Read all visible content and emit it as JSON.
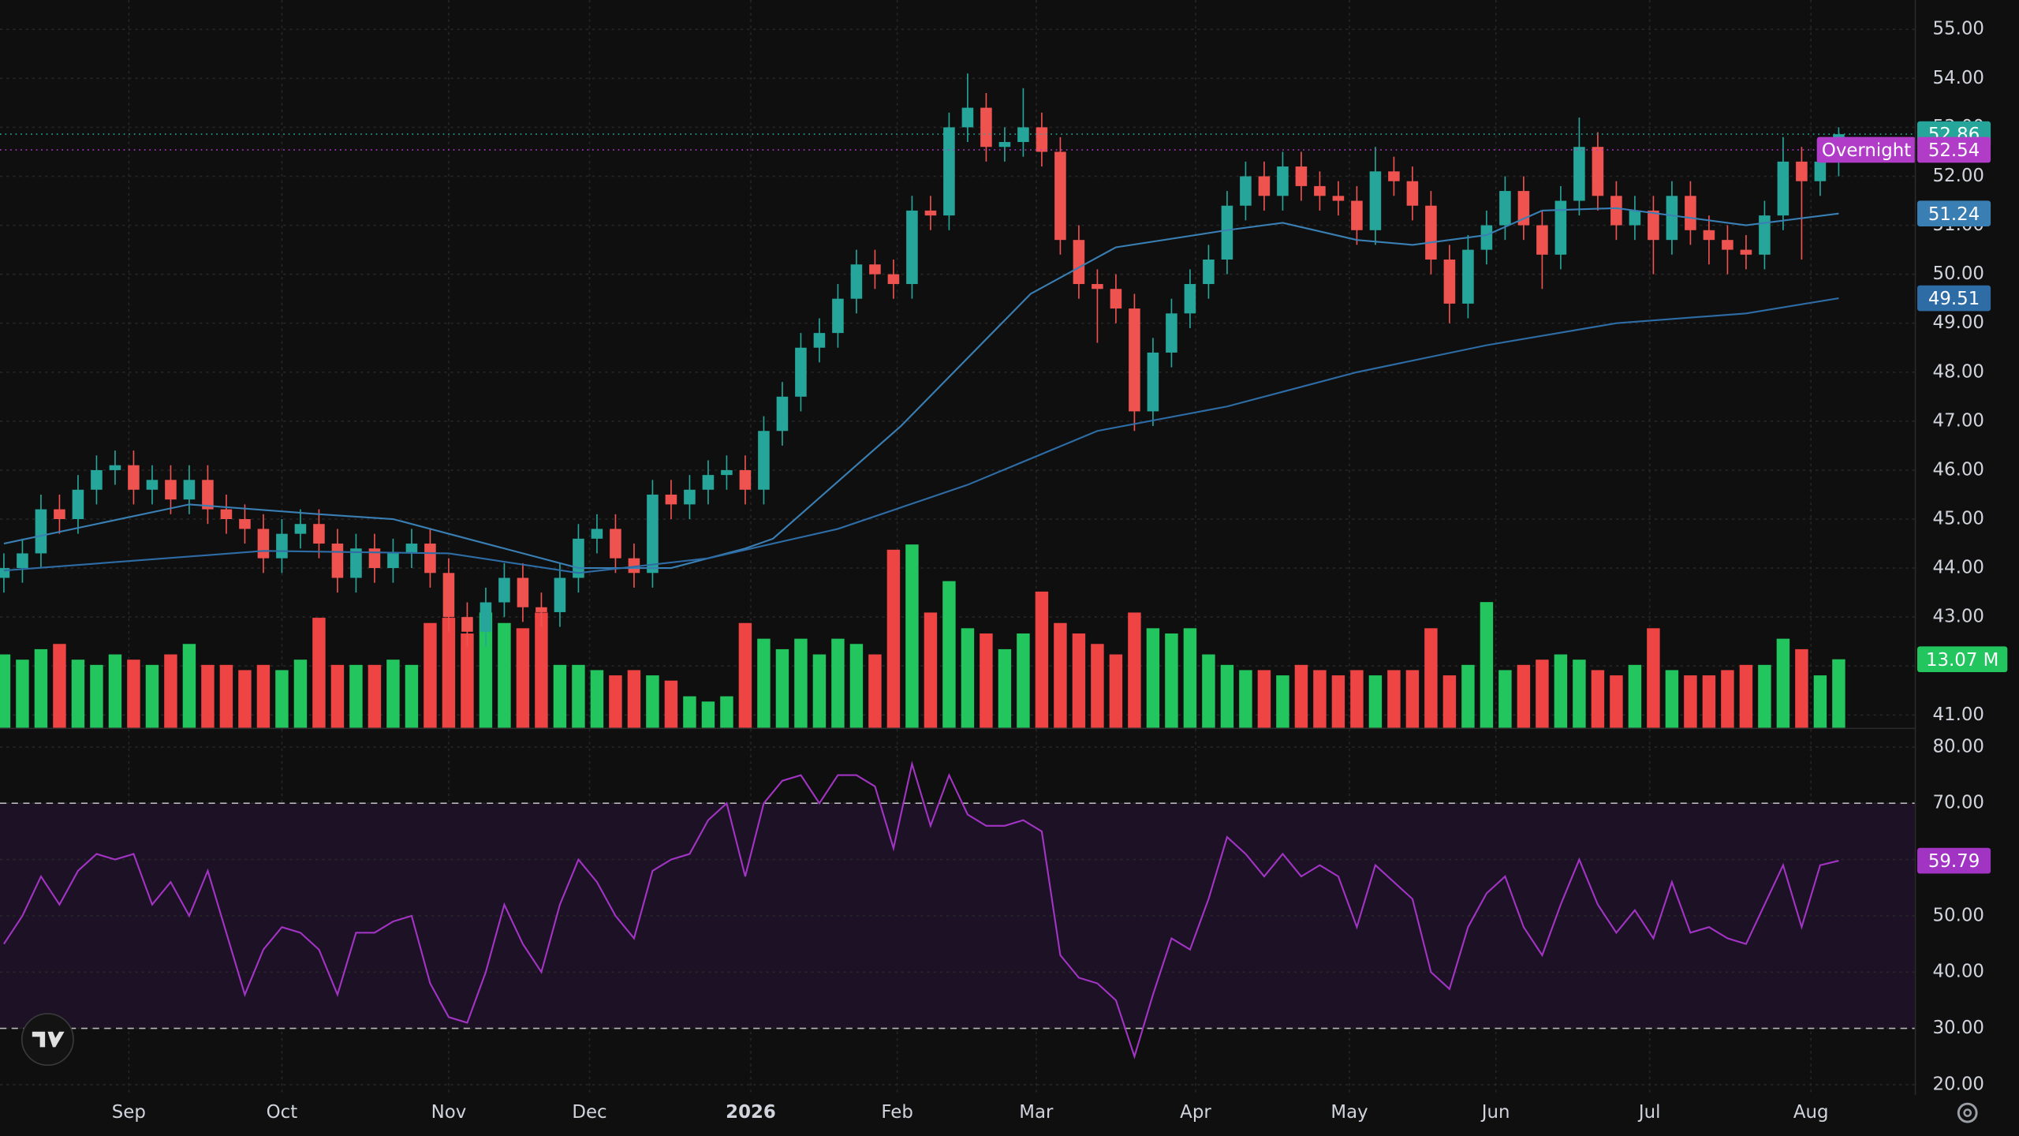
{
  "chart_data": [
    {
      "type": "candlestick",
      "x": [
        0,
        1,
        2,
        3,
        4,
        5,
        6,
        7,
        8,
        9,
        10,
        11,
        12,
        13,
        14,
        15,
        16,
        17,
        18,
        19,
        20,
        21,
        22,
        23,
        24,
        25,
        26,
        27,
        28,
        29,
        30,
        31,
        32,
        33,
        34,
        35,
        36,
        37,
        38,
        39,
        40,
        41,
        42,
        43,
        44,
        45,
        46,
        47,
        48,
        49,
        50,
        51,
        52,
        53,
        54,
        55,
        56,
        57,
        58,
        59,
        60,
        61,
        62,
        63,
        64,
        65,
        66,
        67,
        68,
        69,
        70,
        71,
        72,
        73,
        74,
        75,
        76,
        77,
        78,
        79,
        80,
        81,
        82,
        83,
        84,
        85,
        86,
        87,
        88,
        89,
        90,
        91,
        92,
        93,
        94,
        95,
        96,
        97,
        98,
        99
      ],
      "open": [
        43.8,
        44.0,
        44.3,
        45.2,
        45.0,
        45.6,
        46.0,
        46.1,
        45.6,
        45.8,
        45.4,
        45.8,
        45.2,
        45.0,
        44.8,
        44.2,
        44.7,
        44.9,
        44.5,
        43.8,
        44.4,
        44.0,
        44.3,
        44.5,
        43.9,
        43.0,
        42.7,
        43.3,
        43.8,
        43.2,
        43.1,
        43.8,
        44.6,
        44.8,
        44.2,
        43.9,
        45.5,
        45.3,
        45.6,
        45.9,
        46.0,
        45.6,
        46.8,
        47.5,
        48.5,
        48.8,
        49.5,
        50.2,
        50.0,
        49.8,
        51.3,
        51.2,
        53.0,
        53.4,
        52.6,
        52.7,
        53.0,
        52.5,
        50.7,
        49.8,
        49.7,
        49.3,
        47.2,
        48.4,
        49.2,
        49.8,
        50.3,
        51.4,
        52.0,
        51.6,
        52.2,
        51.8,
        51.6,
        51.5,
        50.9,
        52.1,
        51.9,
        51.4,
        50.3,
        49.4,
        50.5,
        51.0,
        51.7,
        51.0,
        50.4,
        51.5,
        52.6,
        51.6,
        51.0,
        51.3,
        50.7,
        51.6,
        50.9,
        50.7,
        50.5,
        50.4,
        51.2,
        52.3,
        51.9,
        52.3
      ],
      "high": [
        44.3,
        44.6,
        45.5,
        45.5,
        45.9,
        46.3,
        46.4,
        46.4,
        46.1,
        46.1,
        46.1,
        46.1,
        45.5,
        45.3,
        45.1,
        45.0,
        45.2,
        45.2,
        44.8,
        44.7,
        44.7,
        44.6,
        44.8,
        44.8,
        44.2,
        43.3,
        43.6,
        44.1,
        44.1,
        43.5,
        44.1,
        44.9,
        45.1,
        45.1,
        44.5,
        45.8,
        45.8,
        45.9,
        46.2,
        46.3,
        46.3,
        47.1,
        47.8,
        48.8,
        49.1,
        49.8,
        50.5,
        50.5,
        50.3,
        51.6,
        51.6,
        53.3,
        54.1,
        53.7,
        53.0,
        53.8,
        53.3,
        52.8,
        51.0,
        50.1,
        50.0,
        49.6,
        48.7,
        49.5,
        50.1,
        50.6,
        51.7,
        52.3,
        52.3,
        52.5,
        52.5,
        52.1,
        51.9,
        51.8,
        52.6,
        52.4,
        52.2,
        51.7,
        50.6,
        50.8,
        51.3,
        52.0,
        52.0,
        51.3,
        51.8,
        53.2,
        52.9,
        51.9,
        51.6,
        51.6,
        51.9,
        51.9,
        51.2,
        51.0,
        50.8,
        51.5,
        52.8,
        52.6,
        52.6,
        53.0
      ],
      "low": [
        43.5,
        43.7,
        44.0,
        44.7,
        44.7,
        45.3,
        45.7,
        45.3,
        45.3,
        45.1,
        45.1,
        44.9,
        44.7,
        44.5,
        43.9,
        43.9,
        44.4,
        44.2,
        43.5,
        43.5,
        43.7,
        43.7,
        44.0,
        43.6,
        42.7,
        42.4,
        42.4,
        43.0,
        42.9,
        42.8,
        42.8,
        43.5,
        44.3,
        43.9,
        43.6,
        43.6,
        45.0,
        45.0,
        45.3,
        45.6,
        45.3,
        45.3,
        46.5,
        47.2,
        48.2,
        48.5,
        49.2,
        49.7,
        49.5,
        49.5,
        50.9,
        50.9,
        52.7,
        52.3,
        52.3,
        52.4,
        52.2,
        50.4,
        49.5,
        48.6,
        49.0,
        46.8,
        46.9,
        48.1,
        48.9,
        49.5,
        50.0,
        51.1,
        51.3,
        51.3,
        51.5,
        51.3,
        51.2,
        50.6,
        50.6,
        51.6,
        51.1,
        50.0,
        49.0,
        49.1,
        50.2,
        50.7,
        50.7,
        49.7,
        50.1,
        51.2,
        51.3,
        50.7,
        50.7,
        50.0,
        50.4,
        50.6,
        50.2,
        50.0,
        50.1,
        50.1,
        50.9,
        50.3,
        51.6,
        52.0
      ],
      "close": [
        44.0,
        44.3,
        45.2,
        45.0,
        45.6,
        46.0,
        46.1,
        45.6,
        45.8,
        45.4,
        45.8,
        45.2,
        45.0,
        44.8,
        44.2,
        44.7,
        44.9,
        44.5,
        43.8,
        44.4,
        44.0,
        44.3,
        44.5,
        43.9,
        43.0,
        42.7,
        43.3,
        43.8,
        43.2,
        43.1,
        43.8,
        44.6,
        44.8,
        44.2,
        43.9,
        45.5,
        45.3,
        45.6,
        45.9,
        46.0,
        45.6,
        46.8,
        47.5,
        48.5,
        48.8,
        49.5,
        50.2,
        50.0,
        49.8,
        51.3,
        51.2,
        53.0,
        53.4,
        52.6,
        52.7,
        53.0,
        52.5,
        50.7,
        49.8,
        49.7,
        49.3,
        47.2,
        48.4,
        49.2,
        49.8,
        50.3,
        51.4,
        52.0,
        51.6,
        52.2,
        51.8,
        51.6,
        51.5,
        50.9,
        52.1,
        51.9,
        51.4,
        50.3,
        49.4,
        50.5,
        51.0,
        51.7,
        51.0,
        50.4,
        51.5,
        52.6,
        51.6,
        51.0,
        51.3,
        50.7,
        51.6,
        50.9,
        50.7,
        50.5,
        50.4,
        51.2,
        52.3,
        51.9,
        52.3,
        52.86
      ],
      "colors": {
        "up": "#26a69a",
        "down": "#ef5350"
      },
      "overlays": [
        {
          "color": "#3a7fb4",
          "x": [
            0,
            10,
            17,
            21,
            31,
            36,
            40,
            41.5,
            48.4,
            55.4,
            60,
            66,
            69,
            73,
            76,
            80,
            83,
            87,
            90,
            94,
            99
          ],
          "values": [
            44.5,
            45.3,
            45.1,
            45.0,
            44.0,
            44.0,
            44.4,
            44.6,
            46.9,
            49.6,
            50.55,
            50.9,
            51.05,
            50.7,
            50.6,
            50.8,
            51.3,
            51.35,
            51.2,
            51.0,
            51.24
          ]
        },
        {
          "color": "#2e6ca6",
          "x": [
            0,
            14,
            24,
            31,
            38,
            45,
            52,
            59,
            66,
            73,
            80,
            87,
            94,
            99
          ],
          "values": [
            43.95,
            44.35,
            44.3,
            43.9,
            44.2,
            44.8,
            45.7,
            46.8,
            47.3,
            48.0,
            48.55,
            49.0,
            49.2,
            49.51
          ]
        }
      ],
      "overnight": {
        "label": "Overnight",
        "value": 52.54,
        "color": "#b03cc8"
      },
      "xlim": [
        -0.21,
        103.1
      ],
      "xticks": [
        {
          "value": 6.74,
          "label": "Sep"
        },
        {
          "value": 15.0,
          "label": "Oct"
        },
        {
          "value": 24.0,
          "label": "Nov"
        },
        {
          "value": 31.6,
          "label": "Dec"
        },
        {
          "value": 40.3,
          "label": "2026",
          "bold": true
        },
        {
          "value": 48.2,
          "label": "Feb"
        },
        {
          "value": 55.7,
          "label": "Mar"
        },
        {
          "value": 64.3,
          "label": "Apr"
        },
        {
          "value": 72.6,
          "label": "May"
        },
        {
          "value": 80.5,
          "label": "Jun"
        },
        {
          "value": 88.8,
          "label": "Jul"
        },
        {
          "value": 97.5,
          "label": "Aug"
        }
      ],
      "ylim": [
        40.74,
        55.6
      ],
      "yticks": [
        {
          "value": 41,
          "label": "41.00"
        },
        {
          "value": 42,
          "label": "42.00"
        },
        {
          "value": 43,
          "label": "43.00"
        },
        {
          "value": 44,
          "label": "44.00"
        },
        {
          "value": 45,
          "label": "45.00"
        },
        {
          "value": 46,
          "label": "46.00"
        },
        {
          "value": 47,
          "label": "47.00"
        },
        {
          "value": 48,
          "label": "48.00"
        },
        {
          "value": 49,
          "label": "49.00"
        },
        {
          "value": 50,
          "label": "50.00"
        },
        {
          "value": 51,
          "label": "51.00"
        },
        {
          "value": 52,
          "label": "52.00"
        },
        {
          "value": 53,
          "label": "53.00"
        },
        {
          "value": 54,
          "label": "54.00"
        },
        {
          "value": 55,
          "label": "55.00"
        }
      ],
      "grid": true
    },
    {
      "type": "bar",
      "values": [
        14,
        13,
        15,
        16,
        13,
        12,
        14,
        13,
        12,
        14,
        16,
        12,
        12,
        11,
        12,
        11,
        13,
        21,
        12,
        12,
        12,
        13,
        12,
        20,
        21,
        18,
        22,
        20,
        19,
        22,
        12,
        12,
        11,
        10,
        11,
        10,
        9,
        6,
        5,
        6,
        20,
        17,
        15,
        17,
        14,
        17,
        16,
        14,
        34,
        35,
        22,
        28,
        19,
        18,
        15,
        18,
        26,
        20,
        18,
        16,
        14,
        22,
        19,
        18,
        19,
        14,
        12,
        11,
        11,
        10,
        12,
        11,
        10,
        11,
        10,
        11,
        11,
        19,
        10,
        12,
        24,
        11,
        12,
        13,
        14,
        13,
        11,
        10,
        12,
        19,
        11,
        10,
        10,
        11,
        12,
        12,
        17,
        15,
        10,
        13.07
      ],
      "value_labels": [
        null,
        null,
        null,
        null,
        null,
        null,
        null,
        null,
        null,
        null,
        null,
        null,
        null,
        null,
        null,
        null,
        null,
        null,
        null,
        null,
        null,
        null,
        null,
        null,
        null,
        null,
        null,
        null,
        null,
        null,
        null,
        null,
        null,
        null,
        null,
        null,
        null,
        null,
        null,
        null,
        null,
        null,
        null,
        null,
        null,
        null,
        null,
        null,
        null,
        null,
        null,
        null,
        null,
        null,
        null,
        null,
        null,
        null,
        null,
        null,
        null,
        null,
        null,
        null,
        null,
        null,
        null,
        null,
        null,
        null,
        null,
        null,
        null,
        null,
        null,
        null,
        null,
        null,
        null,
        null,
        null,
        null,
        null,
        null,
        null,
        null,
        null,
        null,
        null,
        null,
        null,
        null,
        null,
        null,
        null,
        null,
        null,
        null,
        null,
        "13.07 M"
      ],
      "colors": {
        "up": "#22c55e",
        "down": "#ef4444"
      },
      "ylim": [
        0,
        139
      ]
    },
    {
      "type": "line",
      "values": [
        45,
        50,
        57,
        52,
        58,
        61,
        60,
        61,
        52,
        56,
        50,
        58,
        47,
        36,
        44,
        48,
        47,
        44,
        36,
        47,
        47,
        49,
        50,
        38,
        32,
        31,
        40,
        52,
        45,
        40,
        52,
        60,
        56,
        50,
        46,
        58,
        60,
        61,
        67,
        70,
        57,
        70,
        74,
        75,
        70,
        75,
        75,
        73,
        62,
        77,
        66,
        75,
        68,
        66,
        66,
        67,
        65,
        43,
        39,
        38,
        35,
        25,
        36,
        46,
        44,
        53,
        64,
        61,
        57,
        61,
        57,
        59,
        57,
        48,
        59,
        56,
        53,
        40,
        37,
        48,
        54,
        57,
        48,
        43,
        52,
        60,
        52,
        47,
        51,
        46,
        56,
        47,
        48,
        46,
        45,
        52,
        59,
        48,
        59,
        59.79
      ],
      "color": "#a234c4",
      "band": [
        30,
        70
      ],
      "ylim": [
        18.2,
        83.2
      ],
      "yticks": [
        {
          "value": 20,
          "label": "20.00"
        },
        {
          "value": 30,
          "label": "30.00"
        },
        {
          "value": 40,
          "label": "40.00"
        },
        {
          "value": 50,
          "label": "50.00"
        },
        {
          "value": 60,
          "label": "60.00"
        },
        {
          "value": 70,
          "label": "70.00"
        },
        {
          "value": 80,
          "label": "80.00"
        }
      ]
    }
  ]
}
